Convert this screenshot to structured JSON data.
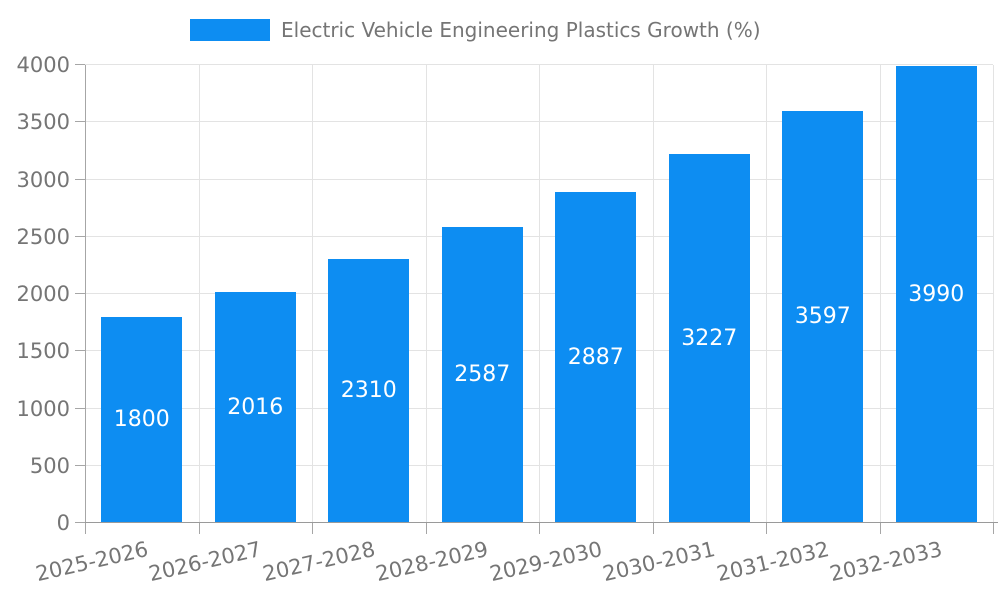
{
  "chart_data": {
    "type": "bar",
    "title": "Electric Vehicle Engineering Plastics Growth (%)",
    "categories": [
      "2025-2026",
      "2026-2027",
      "2027-2028",
      "2028-2029",
      "2029-2030",
      "2030-2031",
      "2031-2032",
      "2032-2033"
    ],
    "values": [
      1800,
      2016,
      2310,
      2587,
      2887,
      3227,
      3597,
      3990
    ],
    "xlabel": "",
    "ylabel": "",
    "ylim": [
      0,
      4000
    ],
    "yticks": [
      0,
      500,
      1000,
      1500,
      2000,
      2500,
      3000,
      3500,
      4000
    ],
    "legend_position": "top-center",
    "grid": true,
    "colors": {
      "bar": "#0d8df2",
      "value_label": "#ffffff",
      "axis_text": "#757575",
      "gridline": "#e3e3e3",
      "axis_line": "#a6a6a6",
      "background": "#ffffff"
    }
  }
}
